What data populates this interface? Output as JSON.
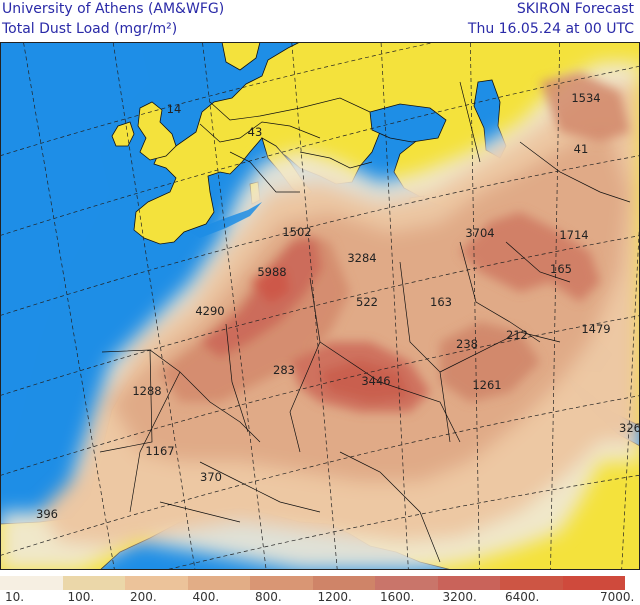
{
  "header": {
    "institution": "University of Athens (AM&WFG)",
    "variable": "Total Dust Load (mgr/m²)",
    "model": "SKIRON Forecast",
    "valid_time": "Thu 16.05.24 at 00 UTC"
  },
  "map": {
    "domain": "Europe, North Africa and Middle East",
    "point_values": [
      "14",
      "43",
      "1502",
      "3284",
      "5988",
      "4290",
      "522",
      "163",
      "283",
      "3446",
      "238",
      "212",
      "1261",
      "1288",
      "1167",
      "370",
      "396",
      "1534",
      "41",
      "3704",
      "1714",
      "165",
      "1479",
      "326"
    ]
  },
  "legend": {
    "labels": [
      "10.",
      "100.",
      "200.",
      "400.",
      "800.",
      "1200.",
      "1600.",
      "3200.",
      "6400.",
      "7000."
    ],
    "colors": [
      "#f6efe2",
      "#ebd7a9",
      "#ecc39a",
      "#e2ad86",
      "#d99674",
      "#cf8468",
      "#c9756a",
      "#c9635a",
      "#cd5544",
      "#cf4a3c"
    ]
  },
  "colors": {
    "ocean": "#1e8ee6",
    "land": "#f4e23c",
    "border": "#111111",
    "graticule": "#222222"
  }
}
